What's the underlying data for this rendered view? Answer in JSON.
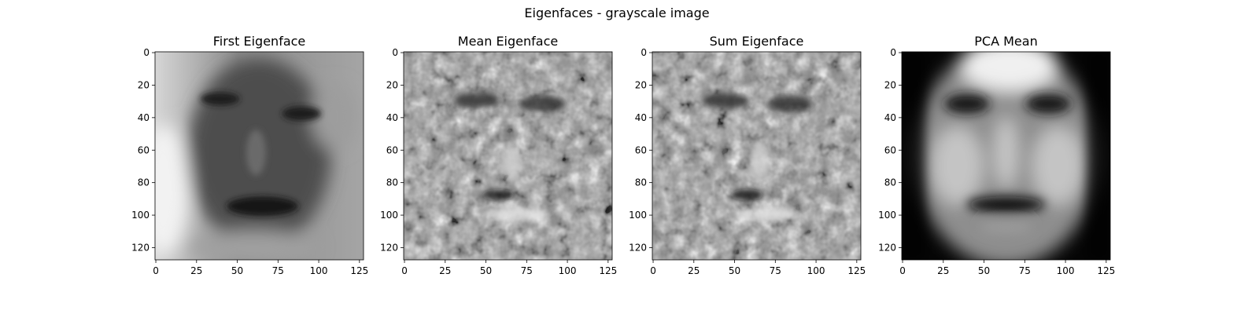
{
  "figure": {
    "title": "Eigenfaces - grayscale image"
  },
  "panels": [
    {
      "title": "First Eigenface",
      "kind": "first-eigenface"
    },
    {
      "title": "Mean Eigenface",
      "kind": "noise-face"
    },
    {
      "title": "Sum Eigenface",
      "kind": "noise-face"
    },
    {
      "title": "PCA Mean",
      "kind": "mean-face"
    }
  ],
  "axes": {
    "x_ticks": [
      0,
      25,
      50,
      75,
      100,
      125
    ],
    "y_ticks": [
      0,
      20,
      40,
      60,
      80,
      100,
      120
    ],
    "x_range": [
      -0.5,
      127.5
    ],
    "y_range": [
      -0.5,
      127.5
    ],
    "colormap": "gray"
  }
}
